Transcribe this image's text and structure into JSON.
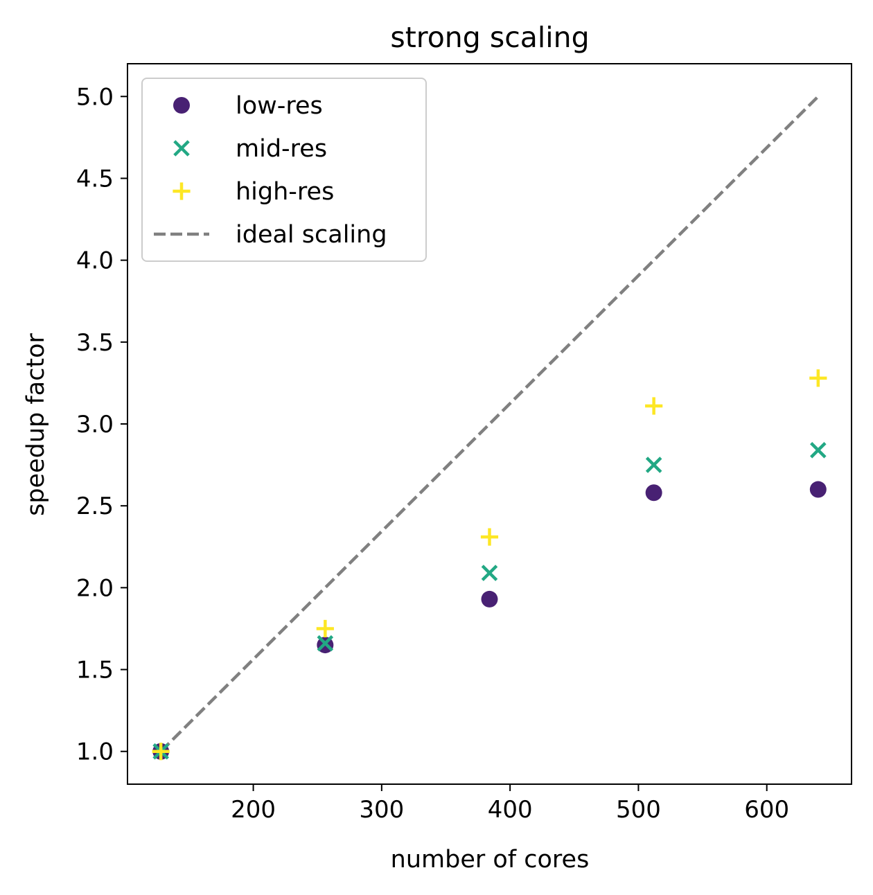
{
  "chart_data": {
    "type": "scatter",
    "title": "strong scaling",
    "xlabel": "number of cores",
    "ylabel": "speedup factor",
    "xlim": [
      102,
      666
    ],
    "ylim": [
      0.8,
      5.2
    ],
    "xticks": [
      200,
      300,
      400,
      500,
      600
    ],
    "xtick_labels": [
      "200",
      "300",
      "400",
      "500",
      "600"
    ],
    "yticks": [
      1.0,
      1.5,
      2.0,
      2.5,
      3.0,
      3.5,
      4.0,
      4.5,
      5.0
    ],
    "ytick_labels": [
      "1.0",
      "1.5",
      "2.0",
      "2.5",
      "3.0",
      "3.5",
      "4.0",
      "4.5",
      "5.0"
    ],
    "grid": false,
    "legend_position": "upper-left",
    "series": [
      {
        "name": "low-res",
        "marker": "circle",
        "color": "#482173",
        "x": [
          128,
          256,
          384,
          512,
          640
        ],
        "y": [
          1.0,
          1.65,
          1.93,
          2.58,
          2.6
        ]
      },
      {
        "name": "mid-res",
        "marker": "x",
        "color": "#22A884",
        "x": [
          128,
          256,
          384,
          512,
          640
        ],
        "y": [
          1.0,
          1.66,
          2.09,
          2.75,
          2.84
        ]
      },
      {
        "name": "high-res",
        "marker": "plus",
        "color": "#FDE725",
        "x": [
          128,
          256,
          384,
          512,
          640
        ],
        "y": [
          1.0,
          1.75,
          2.31,
          3.11,
          3.28
        ]
      }
    ],
    "reference_line": {
      "name": "ideal scaling",
      "style": "dashed",
      "color": "#808080",
      "x": [
        128,
        640
      ],
      "y": [
        1.0,
        5.0
      ]
    }
  }
}
